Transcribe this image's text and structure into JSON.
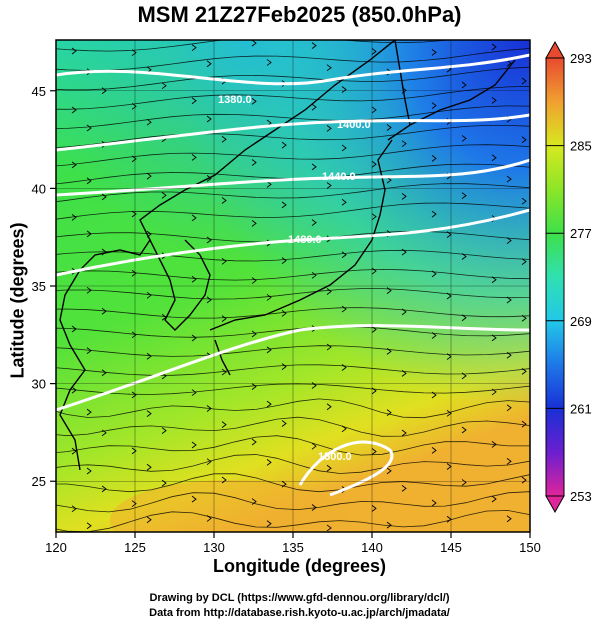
{
  "title": "MSM 21Z27Feb2025 (850.0hPa)",
  "xlabel": "Longitude (degrees)",
  "ylabel": "Latitude  (degrees)",
  "credits": {
    "line1": "Drawing by DCL (https://www.gfd-dennou.org/library/dcl/)",
    "line2": "Data from http://database.rish.kyoto-u.ac.jp/arch/jmadata/"
  },
  "map": {
    "lon_range": [
      120,
      150
    ],
    "lat_range": [
      22.4,
      47.6
    ],
    "x_ticks": [
      "120",
      "125",
      "130",
      "135",
      "140",
      "145",
      "150"
    ],
    "y_ticks": [
      "25",
      "30",
      "35",
      "40",
      "45"
    ],
    "grid": true
  },
  "colorbar": {
    "range": [
      253,
      293
    ],
    "tick_labels": [
      "293",
      "285",
      "277",
      "269",
      "261",
      "253"
    ],
    "colors": [
      "#e0249a",
      "#6b1fd0",
      "#1830d6",
      "#1e78e8",
      "#22c8e8",
      "#30e0b0",
      "#3ee04a",
      "#8ce628",
      "#d8e820",
      "#f0a030",
      "#e84a30"
    ]
  },
  "contours": [
    {
      "label": "1380.0"
    },
    {
      "label": "1400.0"
    },
    {
      "label": "1440.0"
    },
    {
      "label": "1480.0"
    },
    {
      "label": "1500.0"
    }
  ]
}
